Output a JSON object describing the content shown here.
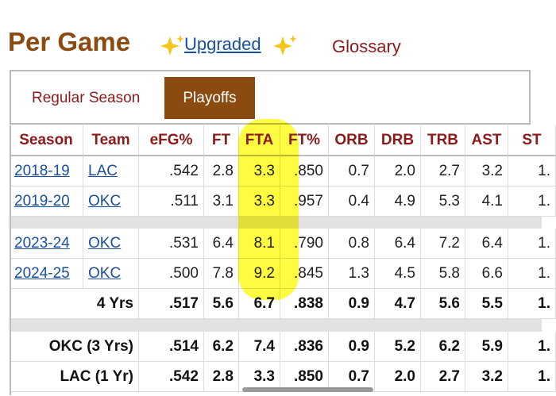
{
  "header": {
    "title": "Per Game",
    "upgraded": "Upgraded",
    "glossary": "Glossary"
  },
  "tabs": [
    "Regular Season",
    "Playoffs"
  ],
  "table": {
    "columns": [
      "Season",
      "Team",
      "eFG%",
      "FT",
      "FTA",
      "FT%",
      "ORB",
      "DRB",
      "TRB",
      "AST",
      "ST"
    ],
    "rows": [
      [
        "2018-19",
        "LAC",
        ".542",
        "2.8",
        "3.3",
        ".850",
        "0.7",
        "2.0",
        "2.7",
        "3.2",
        "1."
      ],
      [
        "2019-20",
        "OKC",
        ".511",
        "3.1",
        "3.3",
        ".957",
        "0.4",
        "4.9",
        "5.3",
        "4.1",
        "1."
      ],
      [
        "2023-24",
        "OKC",
        ".531",
        "6.4",
        "8.1",
        ".790",
        "0.8",
        "6.4",
        "7.2",
        "6.4",
        "1."
      ],
      [
        "2024-25",
        "OKC",
        ".500",
        "7.8",
        "9.2",
        ".845",
        "1.3",
        "4.5",
        "5.8",
        "6.6",
        "1."
      ]
    ],
    "totals": [
      [
        "4 Yrs",
        ".517",
        "5.6",
        "6.7",
        ".838",
        "0.9",
        "4.7",
        "5.6",
        "5.5",
        "1."
      ],
      [
        "OKC (3 Yrs)",
        ".514",
        "6.2",
        "7.4",
        ".836",
        "0.9",
        "5.2",
        "6.2",
        "5.9",
        "1."
      ],
      [
        "LAC (1 Yr)",
        ".542",
        "2.8",
        "3.3",
        ".850",
        "0.7",
        "2.0",
        "2.7",
        "3.2",
        "1."
      ]
    ]
  }
}
